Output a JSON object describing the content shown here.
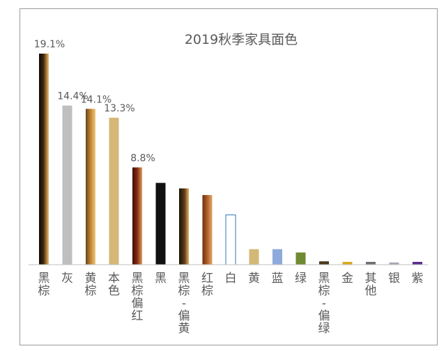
{
  "chart_data": {
    "type": "bar",
    "title": "2019秋季家具面色",
    "xlabel": "",
    "ylabel": "",
    "ylim": [
      0,
      19.1
    ],
    "grid": false,
    "legend": "none",
    "categories": [
      "黑棕",
      "灰",
      "黄棕",
      "本色",
      "黑棕偏红",
      "黑",
      "黑棕-偏黄",
      "红棕",
      "白",
      "黄",
      "蓝",
      "绿",
      "黑棕-偏绿",
      "金",
      "其他",
      "银",
      "紫"
    ],
    "values": [
      19.1,
      14.4,
      14.1,
      13.3,
      8.8,
      7.4,
      6.9,
      6.3,
      4.5,
      1.4,
      1.4,
      1.1,
      0.3,
      0.25,
      0.25,
      0.2,
      0.25
    ],
    "data_labels": [
      "19.1%",
      "14.4%",
      "14.1%",
      "13.3%",
      "8.8%",
      "",
      "",
      "",
      "",
      "",
      "",
      "",
      "",
      "",
      "",
      "",
      ""
    ],
    "category_lines": [
      [
        "黑",
        "棕"
      ],
      [
        "灰"
      ],
      [
        "黄",
        "棕"
      ],
      [
        "本",
        "色"
      ],
      [
        "黑",
        "棕",
        "偏",
        "红"
      ],
      [
        "黑"
      ],
      [
        "黑",
        "棕",
        "-",
        "偏",
        "黄"
      ],
      [
        "红",
        "棕"
      ],
      [
        "白"
      ],
      [
        "黄"
      ],
      [
        "蓝"
      ],
      [
        "绿"
      ],
      [
        "黑",
        "棕",
        "-",
        "偏",
        "绿"
      ],
      [
        "金"
      ],
      [
        "其",
        "他"
      ],
      [
        "银"
      ],
      [
        "紫"
      ]
    ],
    "colors": [
      "#3b2a16",
      "#bfbfbf",
      "#a8722c",
      "#d6b778",
      "#7a2e12",
      "#111111",
      "#5a3d1c",
      "#a0521e",
      "#ffffff",
      "#d3b877",
      "#8eaadb",
      "#6f8a32",
      "#4a3a1a",
      "#d8a820",
      "#707070",
      "#a9a9b3",
      "#5b2a8c"
    ],
    "gradients": [
      "brown-black",
      "flat",
      "gold-brown",
      "flat",
      "red-brown",
      "flat",
      "dark-gold",
      "rust",
      "outline",
      "flat",
      "flat",
      "flat",
      "flat",
      "flat",
      "flat",
      "flat",
      "flat"
    ]
  }
}
